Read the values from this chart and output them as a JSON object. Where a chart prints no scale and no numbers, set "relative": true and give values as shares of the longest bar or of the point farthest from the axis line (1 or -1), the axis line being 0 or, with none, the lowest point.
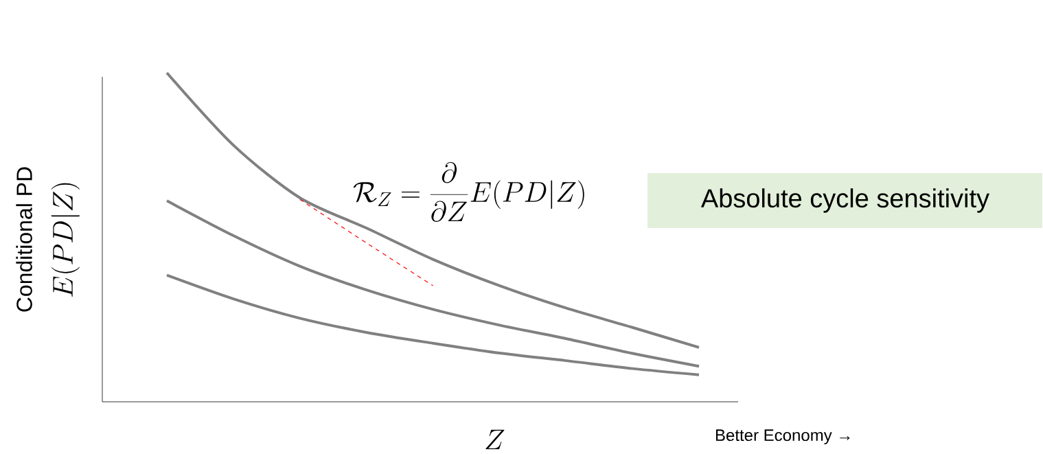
{
  "chart_data": {
    "type": "line",
    "relative": true,
    "marker": "none",
    "xlabel": "Z",
    "ylabel": "Conditional  PD",
    "annotations": [
      "E(PD|Z)",
      "\\mathcal{R}_Z = \\frac{\\partial}{\\partial Z} E(PD|Z)",
      "Absolute cycle sensitivity",
      "Better Economy →"
    ],
    "categories": [
      null,
      null,
      null,
      null,
      null,
      null,
      null,
      null,
      null
    ],
    "series": [
      {
        "color": "#808080",
        "line_style": "solid",
        "values": [
          1,
          0.78,
          0.62,
          0.528,
          0.433,
          0.353,
          0.285,
          0.226,
          0.165
        ]
      },
      {
        "color": "#808080",
        "line_style": "solid",
        "values": [
          0.611,
          0.505,
          0.412,
          0.34,
          0.281,
          0.233,
          0.192,
          0.147,
          0.108
        ]
      },
      {
        "color": "#808080",
        "line_style": "solid",
        "values": [
          0.385,
          0.313,
          0.254,
          0.211,
          0.178,
          0.148,
          0.125,
          0.101,
          0.082
        ]
      },
      {
        "type": "line",
        "color": "#ff0000",
        "line_style": "dashed",
        "values": [
          null,
          null,
          0.615,
          0.483,
          0.353,
          null,
          null,
          null,
          null
        ]
      }
    ]
  }
}
